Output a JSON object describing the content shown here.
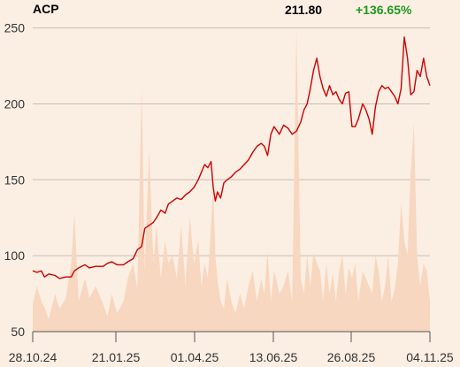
{
  "header": {
    "ticker": "ACP",
    "price": "211.80",
    "change": "+136.65%"
  },
  "colors": {
    "background": "#fbeee3",
    "price_line": "#cc0000",
    "volume_fill": "#f7d7bf",
    "gridline": "#c9bfb6",
    "change_positive": "#1e9a1e"
  },
  "chart_data": {
    "type": "line",
    "title": "",
    "xlabel": "",
    "ylabel": "",
    "ylim": [
      50,
      255
    ],
    "grid": true,
    "y_ticks": [
      50,
      100,
      150,
      200,
      250
    ],
    "x_ticks": [
      "28.10.24",
      "21.01.25",
      "01.04.25",
      "13.06.25",
      "26.08.25",
      "04.11.25"
    ],
    "x_range": [
      "2024-10-28",
      "2025-11-04"
    ],
    "price_series": [
      [
        "2024-10-28",
        90
      ],
      [
        "2024-11-01",
        89
      ],
      [
        "2024-11-05",
        90
      ],
      [
        "2024-11-08",
        86
      ],
      [
        "2024-11-12",
        88
      ],
      [
        "2024-11-18",
        87
      ],
      [
        "2024-11-22",
        85
      ],
      [
        "2024-11-28",
        86
      ],
      [
        "2024-12-03",
        86
      ],
      [
        "2024-12-06",
        90
      ],
      [
        "2024-12-10",
        92
      ],
      [
        "2024-12-16",
        94
      ],
      [
        "2024-12-20",
        92
      ],
      [
        "2024-12-26",
        93
      ],
      [
        "2025-01-02",
        93
      ],
      [
        "2025-01-06",
        95
      ],
      [
        "2025-01-10",
        96
      ],
      [
        "2025-01-15",
        94
      ],
      [
        "2025-01-21",
        94
      ],
      [
        "2025-01-25",
        96
      ],
      [
        "2025-01-30",
        98
      ],
      [
        "2025-02-03",
        104
      ],
      [
        "2025-02-07",
        106
      ],
      [
        "2025-02-10",
        118
      ],
      [
        "2025-02-14",
        120
      ],
      [
        "2025-02-18",
        122
      ],
      [
        "2025-02-21",
        125
      ],
      [
        "2025-02-25",
        130
      ],
      [
        "2025-03-01",
        128
      ],
      [
        "2025-03-04",
        134
      ],
      [
        "2025-03-08",
        136
      ],
      [
        "2025-03-12",
        138
      ],
      [
        "2025-03-16",
        137
      ],
      [
        "2025-03-20",
        140
      ],
      [
        "2025-03-24",
        142
      ],
      [
        "2025-03-28",
        145
      ],
      [
        "2025-04-01",
        150
      ],
      [
        "2025-04-04",
        155
      ],
      [
        "2025-04-07",
        160
      ],
      [
        "2025-04-10",
        158
      ],
      [
        "2025-04-13",
        162
      ],
      [
        "2025-04-15",
        145
      ],
      [
        "2025-04-17",
        136
      ],
      [
        "2025-04-19",
        142
      ],
      [
        "2025-04-22",
        138
      ],
      [
        "2025-04-25",
        148
      ],
      [
        "2025-04-28",
        150
      ],
      [
        "2025-05-02",
        152
      ],
      [
        "2025-05-06",
        155
      ],
      [
        "2025-05-10",
        157
      ],
      [
        "2025-05-14",
        160
      ],
      [
        "2025-05-18",
        163
      ],
      [
        "2025-05-22",
        168
      ],
      [
        "2025-05-26",
        172
      ],
      [
        "2025-05-30",
        174
      ],
      [
        "2025-06-02",
        172
      ],
      [
        "2025-06-05",
        166
      ],
      [
        "2025-06-08",
        180
      ],
      [
        "2025-06-11",
        185
      ],
      [
        "2025-06-13",
        183
      ],
      [
        "2025-06-16",
        180
      ],
      [
        "2025-06-20",
        186
      ],
      [
        "2025-06-24",
        184
      ],
      [
        "2025-06-28",
        180
      ],
      [
        "2025-07-02",
        182
      ],
      [
        "2025-07-06",
        188
      ],
      [
        "2025-07-09",
        196
      ],
      [
        "2025-07-12",
        200
      ],
      [
        "2025-07-15",
        210
      ],
      [
        "2025-07-18",
        222
      ],
      [
        "2025-07-21",
        230
      ],
      [
        "2025-07-24",
        218
      ],
      [
        "2025-07-27",
        210
      ],
      [
        "2025-07-30",
        205
      ],
      [
        "2025-08-02",
        212
      ],
      [
        "2025-08-05",
        206
      ],
      [
        "2025-08-08",
        208
      ],
      [
        "2025-08-11",
        203
      ],
      [
        "2025-08-14",
        200
      ],
      [
        "2025-08-17",
        207
      ],
      [
        "2025-08-20",
        208
      ],
      [
        "2025-08-23",
        185
      ],
      [
        "2025-08-26",
        185
      ],
      [
        "2025-08-29",
        190
      ],
      [
        "2025-09-02",
        200
      ],
      [
        "2025-09-05",
        196
      ],
      [
        "2025-09-08",
        190
      ],
      [
        "2025-09-11",
        180
      ],
      [
        "2025-09-14",
        198
      ],
      [
        "2025-09-17",
        208
      ],
      [
        "2025-09-20",
        212
      ],
      [
        "2025-09-23",
        210
      ],
      [
        "2025-09-26",
        211
      ],
      [
        "2025-09-29",
        208
      ],
      [
        "2025-10-02",
        205
      ],
      [
        "2025-10-05",
        200
      ],
      [
        "2025-10-08",
        210
      ],
      [
        "2025-10-11",
        244
      ],
      [
        "2025-10-14",
        230
      ],
      [
        "2025-10-17",
        206
      ],
      [
        "2025-10-20",
        208
      ],
      [
        "2025-10-23",
        222
      ],
      [
        "2025-10-26",
        218
      ],
      [
        "2025-10-29",
        230
      ],
      [
        "2025-11-01",
        218
      ],
      [
        "2025-11-04",
        212
      ]
    ],
    "volume_series": [
      [
        "2024-10-28",
        68
      ],
      [
        "2024-11-01",
        80
      ],
      [
        "2024-11-05",
        70
      ],
      [
        "2024-11-08",
        66
      ],
      [
        "2024-11-12",
        58
      ],
      [
        "2024-11-18",
        75
      ],
      [
        "2024-11-22",
        65
      ],
      [
        "2024-11-28",
        72
      ],
      [
        "2024-12-03",
        95
      ],
      [
        "2024-12-06",
        128
      ],
      [
        "2024-12-10",
        70
      ],
      [
        "2024-12-16",
        85
      ],
      [
        "2024-12-20",
        72
      ],
      [
        "2024-12-26",
        80
      ],
      [
        "2025-01-02",
        68
      ],
      [
        "2025-01-06",
        60
      ],
      [
        "2025-01-10",
        75
      ],
      [
        "2025-01-15",
        62
      ],
      [
        "2025-01-21",
        70
      ],
      [
        "2025-01-25",
        85
      ],
      [
        "2025-01-30",
        95
      ],
      [
        "2025-02-03",
        78
      ],
      [
        "2025-02-07",
        210
      ],
      [
        "2025-02-10",
        90
      ],
      [
        "2025-02-14",
        170
      ],
      [
        "2025-02-18",
        95
      ],
      [
        "2025-02-21",
        120
      ],
      [
        "2025-02-25",
        85
      ],
      [
        "2025-03-01",
        110
      ],
      [
        "2025-03-04",
        95
      ],
      [
        "2025-03-08",
        100
      ],
      [
        "2025-03-12",
        85
      ],
      [
        "2025-03-16",
        120
      ],
      [
        "2025-03-20",
        80
      ],
      [
        "2025-03-24",
        125
      ],
      [
        "2025-03-28",
        95
      ],
      [
        "2025-04-01",
        110
      ],
      [
        "2025-04-04",
        80
      ],
      [
        "2025-04-07",
        95
      ],
      [
        "2025-04-10",
        85
      ],
      [
        "2025-04-13",
        120
      ],
      [
        "2025-04-15",
        145
      ],
      [
        "2025-04-17",
        100
      ],
      [
        "2025-04-19",
        85
      ],
      [
        "2025-04-22",
        70
      ],
      [
        "2025-04-25",
        65
      ],
      [
        "2025-04-28",
        85
      ],
      [
        "2025-05-02",
        70
      ],
      [
        "2025-05-06",
        62
      ],
      [
        "2025-05-10",
        75
      ],
      [
        "2025-05-14",
        65
      ],
      [
        "2025-05-18",
        80
      ],
      [
        "2025-05-22",
        90
      ],
      [
        "2025-05-26",
        70
      ],
      [
        "2025-05-30",
        85
      ],
      [
        "2025-06-02",
        75
      ],
      [
        "2025-06-05",
        103
      ],
      [
        "2025-06-08",
        70
      ],
      [
        "2025-06-11",
        90
      ],
      [
        "2025-06-13",
        85
      ],
      [
        "2025-06-16",
        75
      ],
      [
        "2025-06-20",
        80
      ],
      [
        "2025-06-24",
        90
      ],
      [
        "2025-06-28",
        70
      ],
      [
        "2025-07-02",
        248
      ],
      [
        "2025-07-06",
        85
      ],
      [
        "2025-07-09",
        75
      ],
      [
        "2025-07-12",
        100
      ],
      [
        "2025-07-15",
        80
      ],
      [
        "2025-07-18",
        102
      ],
      [
        "2025-07-21",
        95
      ],
      [
        "2025-07-24",
        90
      ],
      [
        "2025-07-27",
        70
      ],
      [
        "2025-07-30",
        95
      ],
      [
        "2025-08-02",
        75
      ],
      [
        "2025-08-05",
        88
      ],
      [
        "2025-08-08",
        70
      ],
      [
        "2025-08-11",
        90
      ],
      [
        "2025-08-14",
        100
      ],
      [
        "2025-08-17",
        75
      ],
      [
        "2025-08-20",
        92
      ],
      [
        "2025-08-23",
        85
      ],
      [
        "2025-08-26",
        95
      ],
      [
        "2025-08-29",
        70
      ],
      [
        "2025-09-02",
        90
      ],
      [
        "2025-09-05",
        85
      ],
      [
        "2025-09-08",
        80
      ],
      [
        "2025-09-11",
        75
      ],
      [
        "2025-09-14",
        100
      ],
      [
        "2025-09-17",
        90
      ],
      [
        "2025-09-20",
        70
      ],
      [
        "2025-09-23",
        80
      ],
      [
        "2025-09-26",
        100
      ],
      [
        "2025-09-29",
        70
      ],
      [
        "2025-10-02",
        78
      ],
      [
        "2025-10-05",
        95
      ],
      [
        "2025-10-08",
        135
      ],
      [
        "2025-10-11",
        110
      ],
      [
        "2025-10-14",
        100
      ],
      [
        "2025-10-17",
        155
      ],
      [
        "2025-10-20",
        187
      ],
      [
        "2025-10-23",
        100
      ],
      [
        "2025-10-26",
        80
      ],
      [
        "2025-10-29",
        95
      ],
      [
        "2025-11-01",
        90
      ],
      [
        "2025-11-04",
        70
      ]
    ]
  }
}
